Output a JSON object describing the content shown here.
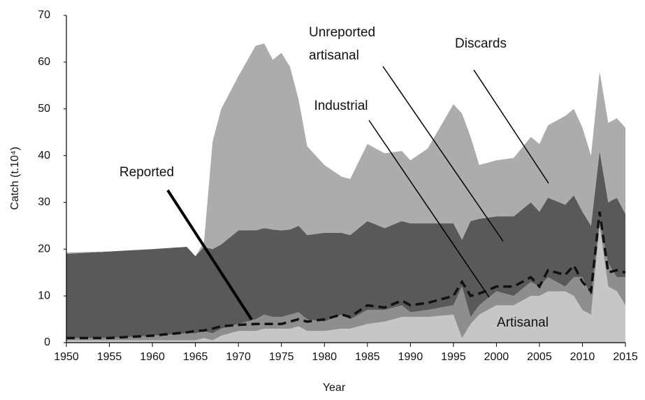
{
  "chart_data": {
    "type": "stacked_area",
    "xlabel": "Year",
    "ylabel": "Catch (t.10⁴)",
    "x": [
      1950,
      1955,
      1960,
      1964,
      1965,
      1966,
      1967,
      1968,
      1970,
      1972,
      1973,
      1974,
      1975,
      1976,
      1977,
      1978,
      1980,
      1982,
      1983,
      1985,
      1987,
      1989,
      1990,
      1992,
      1995,
      1996,
      1997,
      1998,
      2000,
      2002,
      2004,
      2005,
      2006,
      2008,
      2009,
      2010,
      2011,
      2012,
      2013,
      2014,
      2015
    ],
    "series": [
      {
        "name": "Artisanal",
        "color": "#c6c6c6",
        "values": [
          0.5,
          0.5,
          0.5,
          0.5,
          0.5,
          1,
          0.5,
          1.5,
          2.5,
          2.5,
          3,
          3,
          3,
          3,
          3.5,
          2.5,
          2.5,
          3,
          3,
          4,
          4.5,
          5.5,
          5.5,
          5.5,
          6,
          1,
          4,
          6,
          8,
          8,
          10,
          10,
          11,
          11,
          10,
          7,
          6,
          25,
          12,
          11,
          8
        ]
      },
      {
        "name": "Industrial",
        "color": "#8e8e8e",
        "values": [
          0.5,
          0.5,
          1,
          1.5,
          1.5,
          1.5,
          1.5,
          1.5,
          1.5,
          2.5,
          3,
          2.5,
          2.5,
          3,
          3,
          2.5,
          2,
          3,
          2,
          3,
          2.5,
          2.5,
          1,
          1.5,
          2,
          11,
          1.5,
          2,
          3,
          2,
          3,
          2,
          3,
          1,
          4,
          7,
          4,
          1,
          5,
          3,
          6
        ]
      },
      {
        "name": "Unreported artisanal",
        "color": "#595959",
        "values": [
          18,
          18.5,
          18.5,
          18.5,
          16.5,
          18,
          18,
          18,
          20,
          19,
          18.5,
          18.7,
          18.5,
          18.2,
          18.5,
          18,
          19,
          17.5,
          18,
          19,
          17.5,
          18,
          19,
          18.5,
          17.5,
          10,
          20.5,
          18.5,
          16,
          17,
          17,
          16,
          17,
          17.5,
          17.5,
          14,
          15,
          15,
          13,
          17,
          13.5
        ]
      },
      {
        "name": "Discards",
        "color": "#acacac",
        "values": [
          0.3,
          0,
          0,
          0,
          0,
          1,
          23,
          29,
          33,
          39.5,
          39.5,
          36.3,
          38,
          34.8,
          27,
          19,
          14.5,
          12,
          12,
          16.5,
          16,
          15,
          13.5,
          16,
          25.5,
          27,
          18,
          11.5,
          12,
          12.5,
          14,
          14.5,
          15.5,
          19,
          18.5,
          18,
          15,
          17,
          17,
          17,
          18.5
        ]
      }
    ],
    "lines": [
      {
        "name": "Reported",
        "color": "#111111",
        "dashed": true,
        "values": [
          1,
          1,
          1.5,
          2.2,
          2.5,
          2.6,
          3,
          3.5,
          3.8,
          4,
          4,
          4,
          4,
          4.5,
          5,
          4.5,
          5,
          6,
          5.5,
          8,
          7.5,
          9,
          8,
          8.5,
          10,
          13,
          10,
          10.5,
          12,
          12,
          14,
          12,
          15.5,
          14.5,
          16.5,
          13,
          11,
          28,
          15,
          15.5,
          15
        ]
      }
    ],
    "xlim": [
      1950,
      2015
    ],
    "xticks": [
      1950,
      1955,
      1960,
      1965,
      1970,
      1975,
      1980,
      1985,
      1990,
      1995,
      2000,
      2005,
      2010,
      2015
    ],
    "ylim": [
      0,
      70
    ],
    "yticks": [
      0,
      10,
      20,
      30,
      40,
      50,
      60,
      70
    ]
  }
}
